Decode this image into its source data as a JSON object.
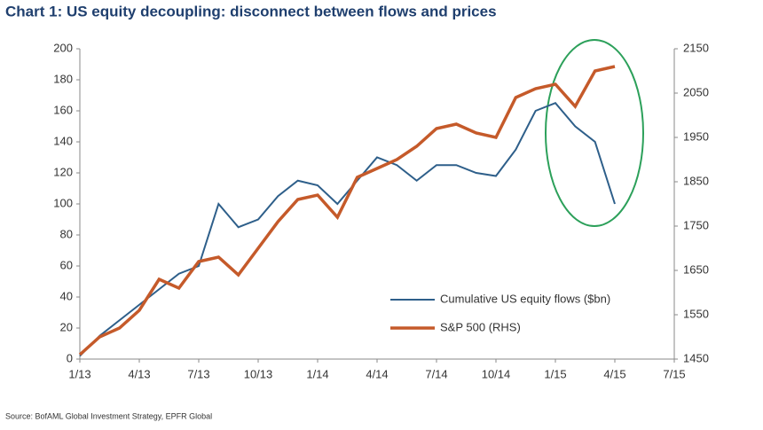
{
  "chart_data": {
    "type": "line",
    "title": "Chart 1: US equity decoupling: disconnect between flows and prices",
    "source": "Source: BofAML Global Investment Strategy, EPFR Global",
    "x": [
      "1/13",
      "2/13",
      "3/13",
      "4/13",
      "5/13",
      "6/13",
      "7/13",
      "8/13",
      "9/13",
      "10/13",
      "11/13",
      "12/13",
      "1/14",
      "2/14",
      "3/14",
      "4/14",
      "5/14",
      "6/14",
      "7/14",
      "8/14",
      "9/14",
      "10/14",
      "11/14",
      "12/14",
      "1/15",
      "2/15",
      "3/15",
      "4/15"
    ],
    "xlim": [
      "1/13",
      "7/15"
    ],
    "xticks": [
      "1/13",
      "4/13",
      "7/13",
      "10/13",
      "1/14",
      "4/14",
      "7/14",
      "10/14",
      "1/15",
      "4/15",
      "7/15"
    ],
    "ylim": [
      0,
      200
    ],
    "yticks": [
      0,
      20,
      40,
      60,
      80,
      100,
      120,
      140,
      160,
      180,
      200
    ],
    "y2lim": [
      1450,
      2150
    ],
    "y2ticks": [
      1450,
      1550,
      1650,
      1750,
      1850,
      1950,
      2050,
      2150
    ],
    "legend": "lower right",
    "series": [
      {
        "name": "Cumulative US equity flows ($bn)",
        "color": "#2e5f8a",
        "values": [
          2,
          15,
          25,
          35,
          45,
          55,
          60,
          100,
          85,
          90,
          105,
          115,
          112,
          100,
          115,
          130,
          125,
          115,
          125,
          125,
          120,
          118,
          135,
          160,
          165,
          150,
          140,
          100
        ]
      },
      {
        "name": "S&P 500 (RHS)",
        "color": "#c55a2a",
        "axis": "y2",
        "values": [
          1460,
          1500,
          1520,
          1560,
          1630,
          1610,
          1670,
          1680,
          1640,
          1700,
          1760,
          1810,
          1820,
          1770,
          1860,
          1880,
          1900,
          1930,
          1970,
          1980,
          1960,
          1950,
          2040,
          2060,
          2070,
          2020,
          2100,
          2110
        ]
      }
    ]
  }
}
